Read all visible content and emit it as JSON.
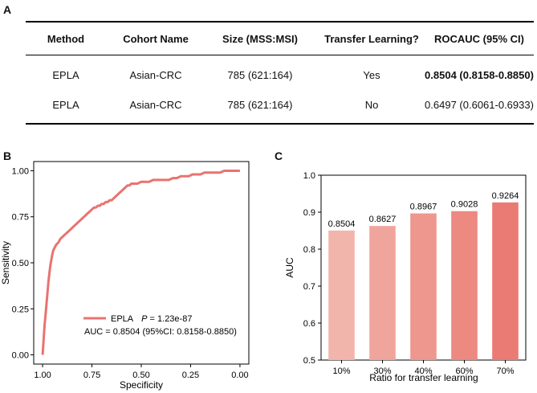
{
  "panels": {
    "a": "A",
    "b": "B",
    "c": "C"
  },
  "table": {
    "headers": [
      "Method",
      "Cohort Name",
      "Size (MSS:MSI)",
      "Transfer Learning?",
      "ROCAUC (95% CI)"
    ],
    "rows": [
      [
        "EPLA",
        "Asian-CRC",
        "785 (621:164)",
        "Yes",
        "0.8504 (0.8158-0.8850)"
      ],
      [
        "EPLA",
        "Asian-CRC",
        "785 (621:164)",
        "No",
        "0.6497 (0.6061-0.6933)"
      ]
    ]
  },
  "chart_data": [
    {
      "type": "line",
      "title": "",
      "xlabel": "Specificity",
      "ylabel": "Sensitivity",
      "xlim": [
        1.0,
        0.0
      ],
      "ylim": [
        0.0,
        1.0
      ],
      "x_ticks": [
        "1.00",
        "0.75",
        "0.50",
        "0.25",
        "0.00"
      ],
      "y_ticks": [
        "0.00",
        "0.25",
        "0.50",
        "0.75",
        "1.00"
      ],
      "legend": {
        "label": "EPLA",
        "p_prefix": "P",
        "p_value": " = 1.23e-87",
        "auc_text": "AUC = 0.8504 (95%CI: 0.8158-0.8850)",
        "placement": "bottom-left"
      },
      "color": "#E8736F",
      "series": [
        {
          "name": "EPLA",
          "specificity": [
            1.0,
            0.995,
            0.99,
            0.985,
            0.98,
            0.975,
            0.97,
            0.965,
            0.96,
            0.955,
            0.95,
            0.945,
            0.94,
            0.93,
            0.92,
            0.91,
            0.9,
            0.89,
            0.88,
            0.87,
            0.86,
            0.85,
            0.84,
            0.83,
            0.82,
            0.81,
            0.8,
            0.79,
            0.78,
            0.77,
            0.76,
            0.75,
            0.74,
            0.73,
            0.72,
            0.71,
            0.7,
            0.69,
            0.68,
            0.67,
            0.66,
            0.65,
            0.64,
            0.63,
            0.62,
            0.61,
            0.6,
            0.59,
            0.58,
            0.57,
            0.56,
            0.55,
            0.54,
            0.52,
            0.5,
            0.48,
            0.46,
            0.44,
            0.42,
            0.4,
            0.38,
            0.36,
            0.34,
            0.32,
            0.3,
            0.28,
            0.26,
            0.24,
            0.22,
            0.2,
            0.18,
            0.16,
            0.14,
            0.12,
            0.1,
            0.08,
            0.06,
            0.04,
            0.02,
            0.0
          ],
          "sensitivity": [
            0.0,
            0.08,
            0.16,
            0.22,
            0.28,
            0.34,
            0.4,
            0.45,
            0.49,
            0.52,
            0.55,
            0.57,
            0.58,
            0.6,
            0.61,
            0.63,
            0.64,
            0.65,
            0.66,
            0.67,
            0.68,
            0.69,
            0.7,
            0.71,
            0.72,
            0.73,
            0.74,
            0.75,
            0.76,
            0.77,
            0.78,
            0.79,
            0.8,
            0.8,
            0.81,
            0.81,
            0.82,
            0.82,
            0.83,
            0.83,
            0.84,
            0.84,
            0.85,
            0.86,
            0.87,
            0.88,
            0.89,
            0.9,
            0.91,
            0.92,
            0.92,
            0.93,
            0.93,
            0.93,
            0.94,
            0.94,
            0.94,
            0.95,
            0.95,
            0.95,
            0.95,
            0.95,
            0.96,
            0.96,
            0.97,
            0.97,
            0.97,
            0.98,
            0.98,
            0.98,
            0.99,
            0.99,
            0.99,
            0.99,
            0.99,
            1.0,
            1.0,
            1.0,
            1.0,
            1.0
          ]
        }
      ]
    },
    {
      "type": "bar",
      "title": "",
      "xlabel": "Ratio for transfer learning",
      "ylabel": "AUC",
      "categories": [
        "10%",
        "30%",
        "40%",
        "60%",
        "70%"
      ],
      "values": [
        0.8504,
        0.8627,
        0.8967,
        0.9028,
        0.9264
      ],
      "value_labels": [
        "0.8504",
        "0.8627",
        "0.8967",
        "0.9028",
        "0.9264"
      ],
      "ylim": [
        0.5,
        1.0
      ],
      "y_ticks": [
        "0.5",
        "0.6",
        "0.7",
        "0.8",
        "0.9",
        "1.0"
      ],
      "colors": [
        "#F2B5AC",
        "#F0A59C",
        "#EE978E",
        "#EC8981",
        "#EA7B74"
      ]
    }
  ]
}
